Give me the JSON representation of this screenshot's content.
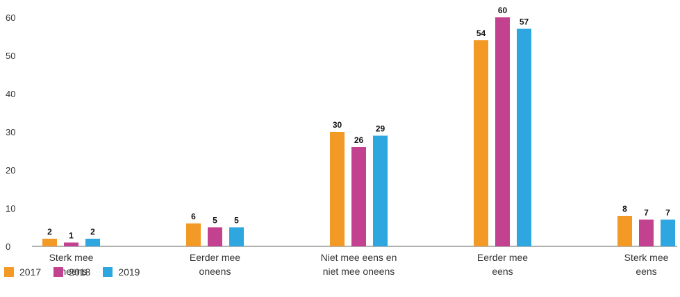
{
  "chart_data": {
    "type": "bar",
    "categories": [
      [
        "Sterk mee",
        "oneens"
      ],
      [
        "Eerder mee",
        "oneens"
      ],
      [
        "Niet mee eens en",
        "niet mee oneens"
      ],
      [
        "Eerder mee",
        "eens"
      ],
      [
        "Sterk mee",
        "eens"
      ]
    ],
    "series": [
      {
        "name": "2017",
        "color": "#F39A26",
        "values": [
          2,
          6,
          30,
          54,
          8
        ]
      },
      {
        "name": "2018",
        "color": "#C2428F",
        "values": [
          1,
          5,
          26,
          60,
          7
        ]
      },
      {
        "name": "2019",
        "color": "#2EA7E0",
        "values": [
          2,
          5,
          29,
          57,
          7
        ]
      }
    ],
    "y_ticks": [
      0,
      10,
      20,
      30,
      40,
      50,
      60
    ],
    "ylim": [
      0,
      60
    ],
    "grid": false,
    "legend_position": "bottom-left"
  }
}
